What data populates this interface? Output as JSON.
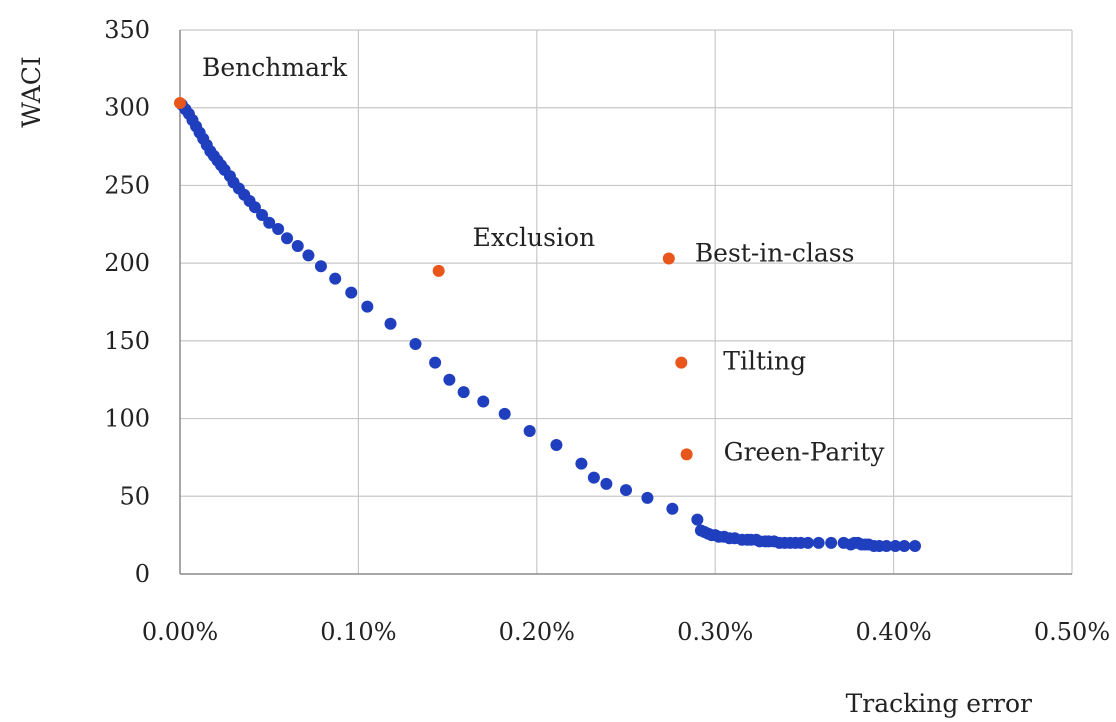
{
  "chart_data": {
    "type": "scatter",
    "xlabel": "Tracking error",
    "ylabel": "WACI",
    "xlim": [
      0,
      0.5
    ],
    "ylim": [
      0,
      350
    ],
    "x_ticks": [
      "0.00%",
      "0.10%",
      "0.20%",
      "0.30%",
      "0.40%",
      "0.50%"
    ],
    "y_ticks": [
      "0",
      "50",
      "100",
      "150",
      "200",
      "250",
      "300",
      "350"
    ],
    "grid": true,
    "frontier_color": "#1f3fbf",
    "highlight_color": "#e8561c",
    "frontier": {
      "x": [
        0.0001,
        0.0003,
        0.0005,
        0.0007,
        0.0009,
        0.0011,
        0.0013,
        0.0015,
        0.0017,
        0.0019,
        0.0021,
        0.0023,
        0.0025,
        0.0028,
        0.003,
        0.0033,
        0.0036,
        0.0039,
        0.0042,
        0.0046,
        0.005,
        0.0055,
        0.006,
        0.0066,
        0.0072,
        0.0079,
        0.0087,
        0.0096,
        0.0105,
        0.0118,
        0.0132,
        0.0143,
        0.0151,
        0.0159,
        0.017,
        0.0182,
        0.0196,
        0.0211,
        0.0225,
        0.0232,
        0.0239,
        0.025,
        0.0262,
        0.0276,
        0.029,
        0.0292,
        0.0294,
        0.0296,
        0.0298,
        0.03,
        0.0302,
        0.0305,
        0.0308,
        0.0311,
        0.0315,
        0.0318,
        0.032,
        0.0323,
        0.0325,
        0.0328,
        0.033,
        0.0333,
        0.0336,
        0.0339,
        0.0342,
        0.0345,
        0.0348,
        0.0352,
        0.0358,
        0.0365,
        0.0372,
        0.0376,
        0.0378,
        0.038,
        0.0382,
        0.0384,
        0.0386,
        0.0389,
        0.0392,
        0.0396,
        0.0401,
        0.0406,
        0.0412
      ],
      "y": [
        302,
        299,
        296,
        292,
        288,
        284,
        280,
        276,
        272,
        269,
        266,
        263,
        260,
        256,
        252,
        248,
        244,
        240,
        236,
        231,
        226,
        222,
        216,
        211,
        205,
        198,
        190,
        181,
        172,
        161,
        148,
        136,
        125,
        117,
        111,
        103,
        92,
        83,
        71,
        62,
        58,
        54,
        49,
        42,
        35,
        28,
        27,
        26,
        25,
        25,
        24,
        24,
        23,
        23,
        22,
        22,
        22,
        22,
        21,
        21,
        21,
        21,
        20,
        20,
        20,
        20,
        20,
        20,
        20,
        20,
        20,
        19,
        20,
        20,
        19,
        19,
        19,
        18,
        18,
        18,
        18,
        18,
        18
      ]
    },
    "highlights": [
      {
        "label": "Benchmark",
        "x": 0.0,
        "y": 303
      },
      {
        "label": "Exclusion",
        "x": 0.0145,
        "y": 195
      },
      {
        "label": "Best-in-class",
        "x": 0.0274,
        "y": 203
      },
      {
        "label": "Tilting",
        "x": 0.0281,
        "y": 136
      },
      {
        "label": "Green-Parity",
        "x": 0.0284,
        "y": 77
      }
    ]
  }
}
